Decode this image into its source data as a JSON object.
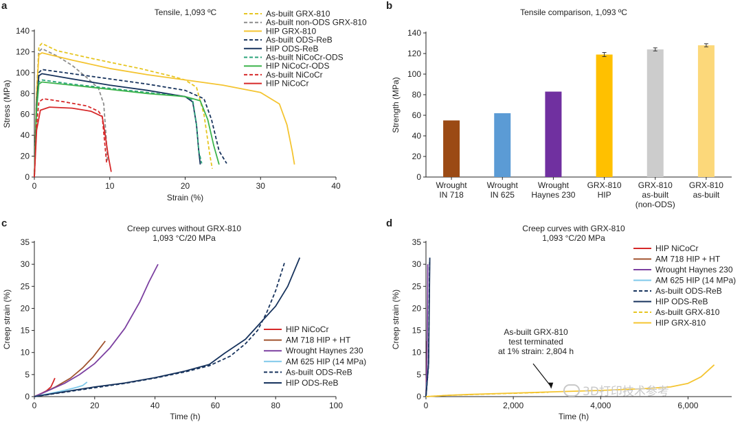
{
  "chart_data": [
    {
      "id": "a",
      "type": "line",
      "panel_letter": "a",
      "title": "Tensile, 1,093 ºC",
      "xlabel": "Strain (%)",
      "ylabel": "Stress (MPa)",
      "xlim": [
        0,
        40
      ],
      "ylim": [
        0,
        140
      ],
      "xticks": [
        0,
        10,
        20,
        30,
        40
      ],
      "yticks": [
        0,
        20,
        40,
        60,
        80,
        100,
        120,
        140
      ],
      "legend_position": "top-right",
      "series": [
        {
          "name": "As-built GRX-810",
          "color": "#e6c520",
          "dash": true,
          "points": [
            [
              0,
              0
            ],
            [
              0.3,
              80
            ],
            [
              0.6,
              125
            ],
            [
              1,
              128
            ],
            [
              3,
              121
            ],
            [
              8,
              113
            ],
            [
              14,
              104
            ],
            [
              18,
              97
            ],
            [
              20,
              93
            ],
            [
              21.5,
              86
            ],
            [
              22.5,
              60
            ],
            [
              23.3,
              20
            ],
            [
              23.6,
              8
            ]
          ]
        },
        {
          "name": "As-built non-ODS GRX-810",
          "color": "#8c8c8c",
          "dash": true,
          "points": [
            [
              0,
              0
            ],
            [
              0.3,
              80
            ],
            [
              0.6,
              120
            ],
            [
              1,
              123
            ],
            [
              3,
              116
            ],
            [
              5,
              107
            ],
            [
              7,
              95
            ],
            [
              8.5,
              85
            ],
            [
              9.2,
              70
            ],
            [
              9.5,
              40
            ],
            [
              9.7,
              15
            ]
          ]
        },
        {
          "name": "HIP GRX-810",
          "color": "#f4c430",
          "dash": false,
          "points": [
            [
              0,
              0
            ],
            [
              0.3,
              80
            ],
            [
              0.6,
              117
            ],
            [
              1,
              119
            ],
            [
              5,
              112
            ],
            [
              10,
              104
            ],
            [
              15,
              98
            ],
            [
              20,
              93
            ],
            [
              25,
              88
            ],
            [
              30,
              81
            ],
            [
              32.5,
              70
            ],
            [
              33.5,
              50
            ],
            [
              34.2,
              25
            ],
            [
              34.5,
              12
            ]
          ]
        },
        {
          "name": "As-built ODS-ReB",
          "color": "#16325c",
          "dash": true,
          "points": [
            [
              0,
              0
            ],
            [
              0.3,
              70
            ],
            [
              0.6,
              100
            ],
            [
              1,
              103
            ],
            [
              5,
              99
            ],
            [
              10,
              94
            ],
            [
              15,
              89
            ],
            [
              20,
              83
            ],
            [
              22.5,
              75
            ],
            [
              23.5,
              55
            ],
            [
              24.5,
              25
            ],
            [
              25.5,
              13
            ]
          ]
        },
        {
          "name": "HIP ODS-ReB",
          "color": "#16325c",
          "dash": false,
          "points": [
            [
              0,
              0
            ],
            [
              0.3,
              70
            ],
            [
              0.6,
              97
            ],
            [
              1,
              99
            ],
            [
              5,
              94
            ],
            [
              10,
              88
            ],
            [
              15,
              83
            ],
            [
              20,
              77
            ],
            [
              21,
              72
            ],
            [
              21.5,
              50
            ],
            [
              21.8,
              25
            ],
            [
              22,
              12
            ]
          ]
        },
        {
          "name": "As-built NiCoCr-ODS",
          "color": "#2aa37a",
          "dash": true,
          "points": [
            [
              0,
              0
            ],
            [
              0.3,
              65
            ],
            [
              0.6,
              91
            ],
            [
              1,
              93
            ],
            [
              5,
              89
            ],
            [
              10,
              85
            ],
            [
              15,
              81
            ],
            [
              20,
              77
            ],
            [
              21,
              74
            ],
            [
              21.5,
              50
            ],
            [
              21.8,
              25
            ],
            [
              22.2,
              13
            ]
          ]
        },
        {
          "name": "HIP NiCoCr-ODS",
          "color": "#3cb44b",
          "dash": false,
          "points": [
            [
              0,
              0
            ],
            [
              0.3,
              65
            ],
            [
              0.6,
              89
            ],
            [
              1,
              91
            ],
            [
              5,
              88
            ],
            [
              10,
              84
            ],
            [
              15,
              80
            ],
            [
              20,
              77
            ],
            [
              22,
              73
            ],
            [
              23,
              55
            ],
            [
              23.8,
              30
            ],
            [
              24.5,
              12
            ]
          ]
        },
        {
          "name": "As-built NiCoCr",
          "color": "#d62728",
          "dash": true,
          "points": [
            [
              0,
              0
            ],
            [
              0.3,
              50
            ],
            [
              0.6,
              72
            ],
            [
              1.2,
              75
            ],
            [
              4,
              72
            ],
            [
              7,
              68
            ],
            [
              8.5,
              63
            ],
            [
              9,
              58
            ],
            [
              9.3,
              35
            ],
            [
              9.6,
              12
            ]
          ]
        },
        {
          "name": "HIP NiCoCr",
          "color": "#d62728",
          "dash": false,
          "points": [
            [
              0,
              0
            ],
            [
              0.3,
              45
            ],
            [
              0.8,
              64
            ],
            [
              2,
              67
            ],
            [
              5,
              66
            ],
            [
              7.5,
              63
            ],
            [
              9,
              58
            ],
            [
              9.4,
              40
            ],
            [
              9.8,
              20
            ],
            [
              10.2,
              5
            ]
          ]
        }
      ]
    },
    {
      "id": "b",
      "type": "bar",
      "panel_letter": "b",
      "title": "Tensile comparison, 1,093 ºC",
      "ylabel": "Strength (MPa)",
      "ylim": [
        0,
        140
      ],
      "yticks": [
        0,
        20,
        40,
        60,
        80,
        100,
        120,
        140
      ],
      "categories": [
        [
          "Wrought",
          "IN 718"
        ],
        [
          "Wrought",
          "IN 625"
        ],
        [
          "Wrought",
          "Haynes 230"
        ],
        [
          "GRX-810",
          "HIP"
        ],
        [
          "GRX-810",
          "as-built",
          "(non-ODS)"
        ],
        [
          "GRX-810",
          "as-built"
        ]
      ],
      "values": [
        55,
        62,
        83,
        119,
        124,
        128
      ],
      "errors": [
        0,
        0,
        0,
        2,
        1.5,
        1.5
      ],
      "colors": [
        "#9b4a14",
        "#5b9bd5",
        "#7030a0",
        "#ffc000",
        "#cccccc",
        "#fcd87a"
      ]
    },
    {
      "id": "c",
      "type": "line",
      "panel_letter": "c",
      "title": [
        "Creep curves without GRX-810",
        "1,093 °C/20 MPa"
      ],
      "xlabel": "Time (h)",
      "ylabel": "Creep strain (%)",
      "xlim": [
        0,
        100
      ],
      "ylim": [
        0,
        35
      ],
      "xticks": [
        0,
        20,
        40,
        60,
        80,
        100
      ],
      "yticks": [
        0,
        5,
        10,
        15,
        20,
        25,
        30,
        35
      ],
      "legend_position": "center-right",
      "series": [
        {
          "name": "HIP NiCoCr",
          "color": "#d62728",
          "dash": false,
          "points": [
            [
              0,
              0
            ],
            [
              2,
              0.6
            ],
            [
              4,
              1.3
            ],
            [
              5.5,
              2.2
            ],
            [
              6.3,
              3.4
            ],
            [
              6.8,
              4.2
            ]
          ]
        },
        {
          "name": "AM 718 HIP + HT",
          "color": "#a0522d",
          "dash": false,
          "points": [
            [
              0,
              0
            ],
            [
              3,
              0.9
            ],
            [
              7,
              2.2
            ],
            [
              12,
              4.2
            ],
            [
              16,
              6.5
            ],
            [
              19.5,
              9
            ],
            [
              23.5,
              12.6
            ]
          ]
        },
        {
          "name": "Wrought Haynes 230",
          "color": "#7b3fa0",
          "dash": false,
          "points": [
            [
              0,
              0
            ],
            [
              5,
              1.5
            ],
            [
              10,
              3
            ],
            [
              15,
              5
            ],
            [
              20,
              7.5
            ],
            [
              25,
              11
            ],
            [
              30,
              15.5
            ],
            [
              35,
              21.5
            ],
            [
              38,
              26
            ],
            [
              41,
              30
            ]
          ]
        },
        {
          "name": "AM 625 HIP (14 MPa)",
          "color": "#7ec8ea",
          "dash": false,
          "points": [
            [
              0,
              0
            ],
            [
              5,
              0.7
            ],
            [
              10,
              1.4
            ],
            [
              14,
              2.1
            ],
            [
              16,
              2.5
            ],
            [
              17.5,
              3.3
            ]
          ]
        },
        {
          "name": "As-built ODS-ReB",
          "color": "#16325c",
          "dash": true,
          "points": [
            [
              0,
              0
            ],
            [
              10,
              1
            ],
            [
              20,
              2
            ],
            [
              30,
              3
            ],
            [
              40,
              4.2
            ],
            [
              50,
              5.6
            ],
            [
              58,
              7
            ],
            [
              65,
              9.2
            ],
            [
              70,
              12
            ],
            [
              74,
              15
            ],
            [
              77,
              19
            ],
            [
              80,
              24
            ],
            [
              83,
              30.5
            ]
          ]
        },
        {
          "name": "HIP ODS-ReB",
          "color": "#16325c",
          "dash": false,
          "points": [
            [
              0,
              0
            ],
            [
              10,
              1.1
            ],
            [
              20,
              2.2
            ],
            [
              30,
              3.1
            ],
            [
              40,
              4.3
            ],
            [
              50,
              5.8
            ],
            [
              58,
              7.3
            ],
            [
              63,
              9.8
            ],
            [
              70,
              13
            ],
            [
              76,
              17.5
            ],
            [
              80,
              20.5
            ],
            [
              84,
              25
            ],
            [
              88,
              31.5
            ]
          ]
        }
      ]
    },
    {
      "id": "d",
      "type": "line",
      "panel_letter": "d",
      "title": [
        "Creep curves with GRX-810",
        "1,093 °C/20 MPa"
      ],
      "xlabel": "Time (h)",
      "ylabel": "Creep strain (%)",
      "xlim": [
        0,
        7000
      ],
      "ylim": [
        0,
        35
      ],
      "xticks": [
        0,
        2000,
        4000,
        6000
      ],
      "xticklabels": [
        "0",
        "2,000",
        "4,000",
        "6,000"
      ],
      "yticks": [
        0,
        5,
        10,
        15,
        20,
        25,
        30,
        35
      ],
      "legend_position": "top-right",
      "annotation": {
        "lines": [
          "As-built GRX-810",
          "test terminated",
          "at 1% strain: 2,804 h"
        ],
        "x": 2804,
        "y": 1
      },
      "series": [
        {
          "name": "HIP NiCoCr",
          "color": "#d62728",
          "dash": false,
          "points": [
            [
              0,
              0
            ],
            [
              4,
              2
            ],
            [
              7,
              4.2
            ]
          ]
        },
        {
          "name": "AM 718 HIP + HT",
          "color": "#a0522d",
          "dash": false,
          "points": [
            [
              0,
              0
            ],
            [
              12,
              5
            ],
            [
              23,
              12.6
            ]
          ]
        },
        {
          "name": "Wrought Haynes 230",
          "color": "#7b3fa0",
          "dash": false,
          "points": [
            [
              0,
              0
            ],
            [
              20,
              7
            ],
            [
              35,
              20
            ],
            [
              41,
              30
            ]
          ]
        },
        {
          "name": "AM 625 HIP (14 MPa)",
          "color": "#7ec8ea",
          "dash": false,
          "points": [
            [
              0,
              0
            ],
            [
              17,
              3.3
            ]
          ]
        },
        {
          "name": "As-built ODS-ReB",
          "color": "#16325c",
          "dash": true,
          "points": [
            [
              0,
              0
            ],
            [
              58,
              7
            ],
            [
              83,
              30.5
            ]
          ]
        },
        {
          "name": "HIP ODS-ReB",
          "color": "#16325c",
          "dash": false,
          "points": [
            [
              0,
              0
            ],
            [
              60,
              7.5
            ],
            [
              88,
              31.5
            ]
          ]
        },
        {
          "name": "As-built GRX-810",
          "color": "#e6c520",
          "dash": true,
          "points": [
            [
              0,
              0
            ],
            [
              500,
              0.3
            ],
            [
              1000,
              0.45
            ],
            [
              1500,
              0.6
            ],
            [
              2000,
              0.75
            ],
            [
              2500,
              0.9
            ],
            [
              2804,
              1.0
            ]
          ]
        },
        {
          "name": "HIP GRX-810",
          "color": "#f4c430",
          "dash": false,
          "points": [
            [
              0,
              0
            ],
            [
              500,
              0.3
            ],
            [
              1000,
              0.5
            ],
            [
              2000,
              0.8
            ],
            [
              3000,
              1.1
            ],
            [
              4000,
              1.4
            ],
            [
              5000,
              1.8
            ],
            [
              5600,
              2.2
            ],
            [
              6000,
              3
            ],
            [
              6300,
              4.5
            ],
            [
              6600,
              7.2
            ]
          ]
        }
      ]
    }
  ],
  "watermark": "3D打印技术参考"
}
